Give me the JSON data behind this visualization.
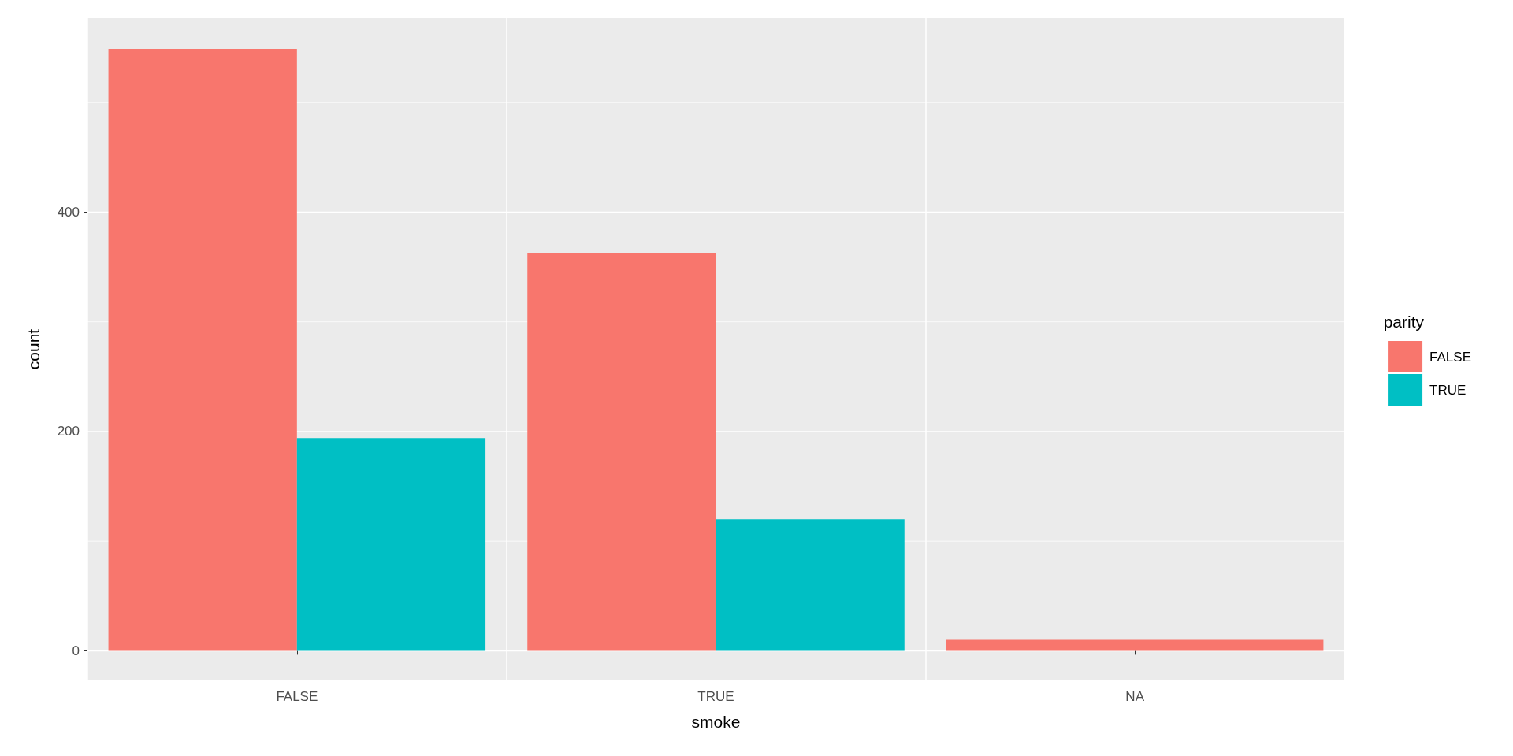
{
  "chart_data": {
    "type": "bar",
    "xlabel": "smoke",
    "ylabel": "count",
    "legend_title": "parity",
    "categories": [
      "FALSE",
      "TRUE",
      "NA"
    ],
    "series": [
      {
        "name": "FALSE",
        "color": "#f8766d",
        "values": [
          549,
          363,
          10
        ]
      },
      {
        "name": "TRUE",
        "color": "#00bfc4",
        "values": [
          194,
          120,
          null
        ]
      }
    ],
    "ylim": [
      -27,
      577
    ],
    "yticks": [
      0,
      {
        "value": 100,
        "label": null
      },
      200,
      {
        "value": 300,
        "label": null
      },
      400,
      {
        "value": 500,
        "label": null
      }
    ],
    "grid": true,
    "legend": "right"
  }
}
